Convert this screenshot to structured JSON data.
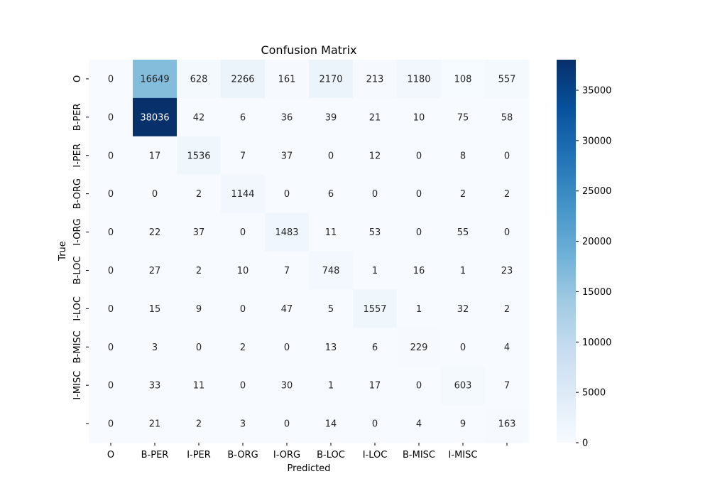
{
  "chart_data": {
    "type": "heatmap",
    "title": "Confusion Matrix",
    "xlabel": "Predicted",
    "ylabel": "True",
    "x_tick_labels": [
      "O",
      "B-PER",
      "I-PER",
      "B-ORG",
      "I-ORG",
      "B-LOC",
      "I-LOC",
      "B-MISC",
      "I-MISC",
      ""
    ],
    "y_tick_labels": [
      "O",
      "B-PER",
      "I-PER",
      "B-ORG",
      "I-ORG",
      "B-LOC",
      "I-LOC",
      "B-MISC",
      "I-MISC",
      ""
    ],
    "values": [
      [
        0,
        16649,
        628,
        2266,
        161,
        2170,
        213,
        1180,
        108,
        557
      ],
      [
        0,
        38036,
        42,
        6,
        36,
        39,
        21,
        10,
        75,
        58
      ],
      [
        0,
        17,
        1536,
        7,
        37,
        0,
        12,
        0,
        8,
        0
      ],
      [
        0,
        0,
        2,
        1144,
        0,
        6,
        0,
        0,
        2,
        2
      ],
      [
        0,
        22,
        37,
        0,
        1483,
        11,
        53,
        0,
        55,
        0
      ],
      [
        0,
        27,
        2,
        10,
        7,
        748,
        1,
        16,
        1,
        23
      ],
      [
        0,
        15,
        9,
        0,
        47,
        5,
        1557,
        1,
        32,
        2
      ],
      [
        0,
        3,
        0,
        2,
        0,
        13,
        6,
        229,
        0,
        4
      ],
      [
        0,
        33,
        11,
        0,
        30,
        1,
        17,
        0,
        603,
        7
      ],
      [
        0,
        21,
        2,
        3,
        0,
        14,
        0,
        4,
        9,
        163
      ]
    ],
    "colormap": "Blues",
    "colorbar": {
      "min": 0,
      "max": 38036,
      "tick_labels": [
        "0",
        "5000",
        "10000",
        "15000",
        "20000",
        "25000",
        "30000",
        "35000"
      ]
    }
  }
}
